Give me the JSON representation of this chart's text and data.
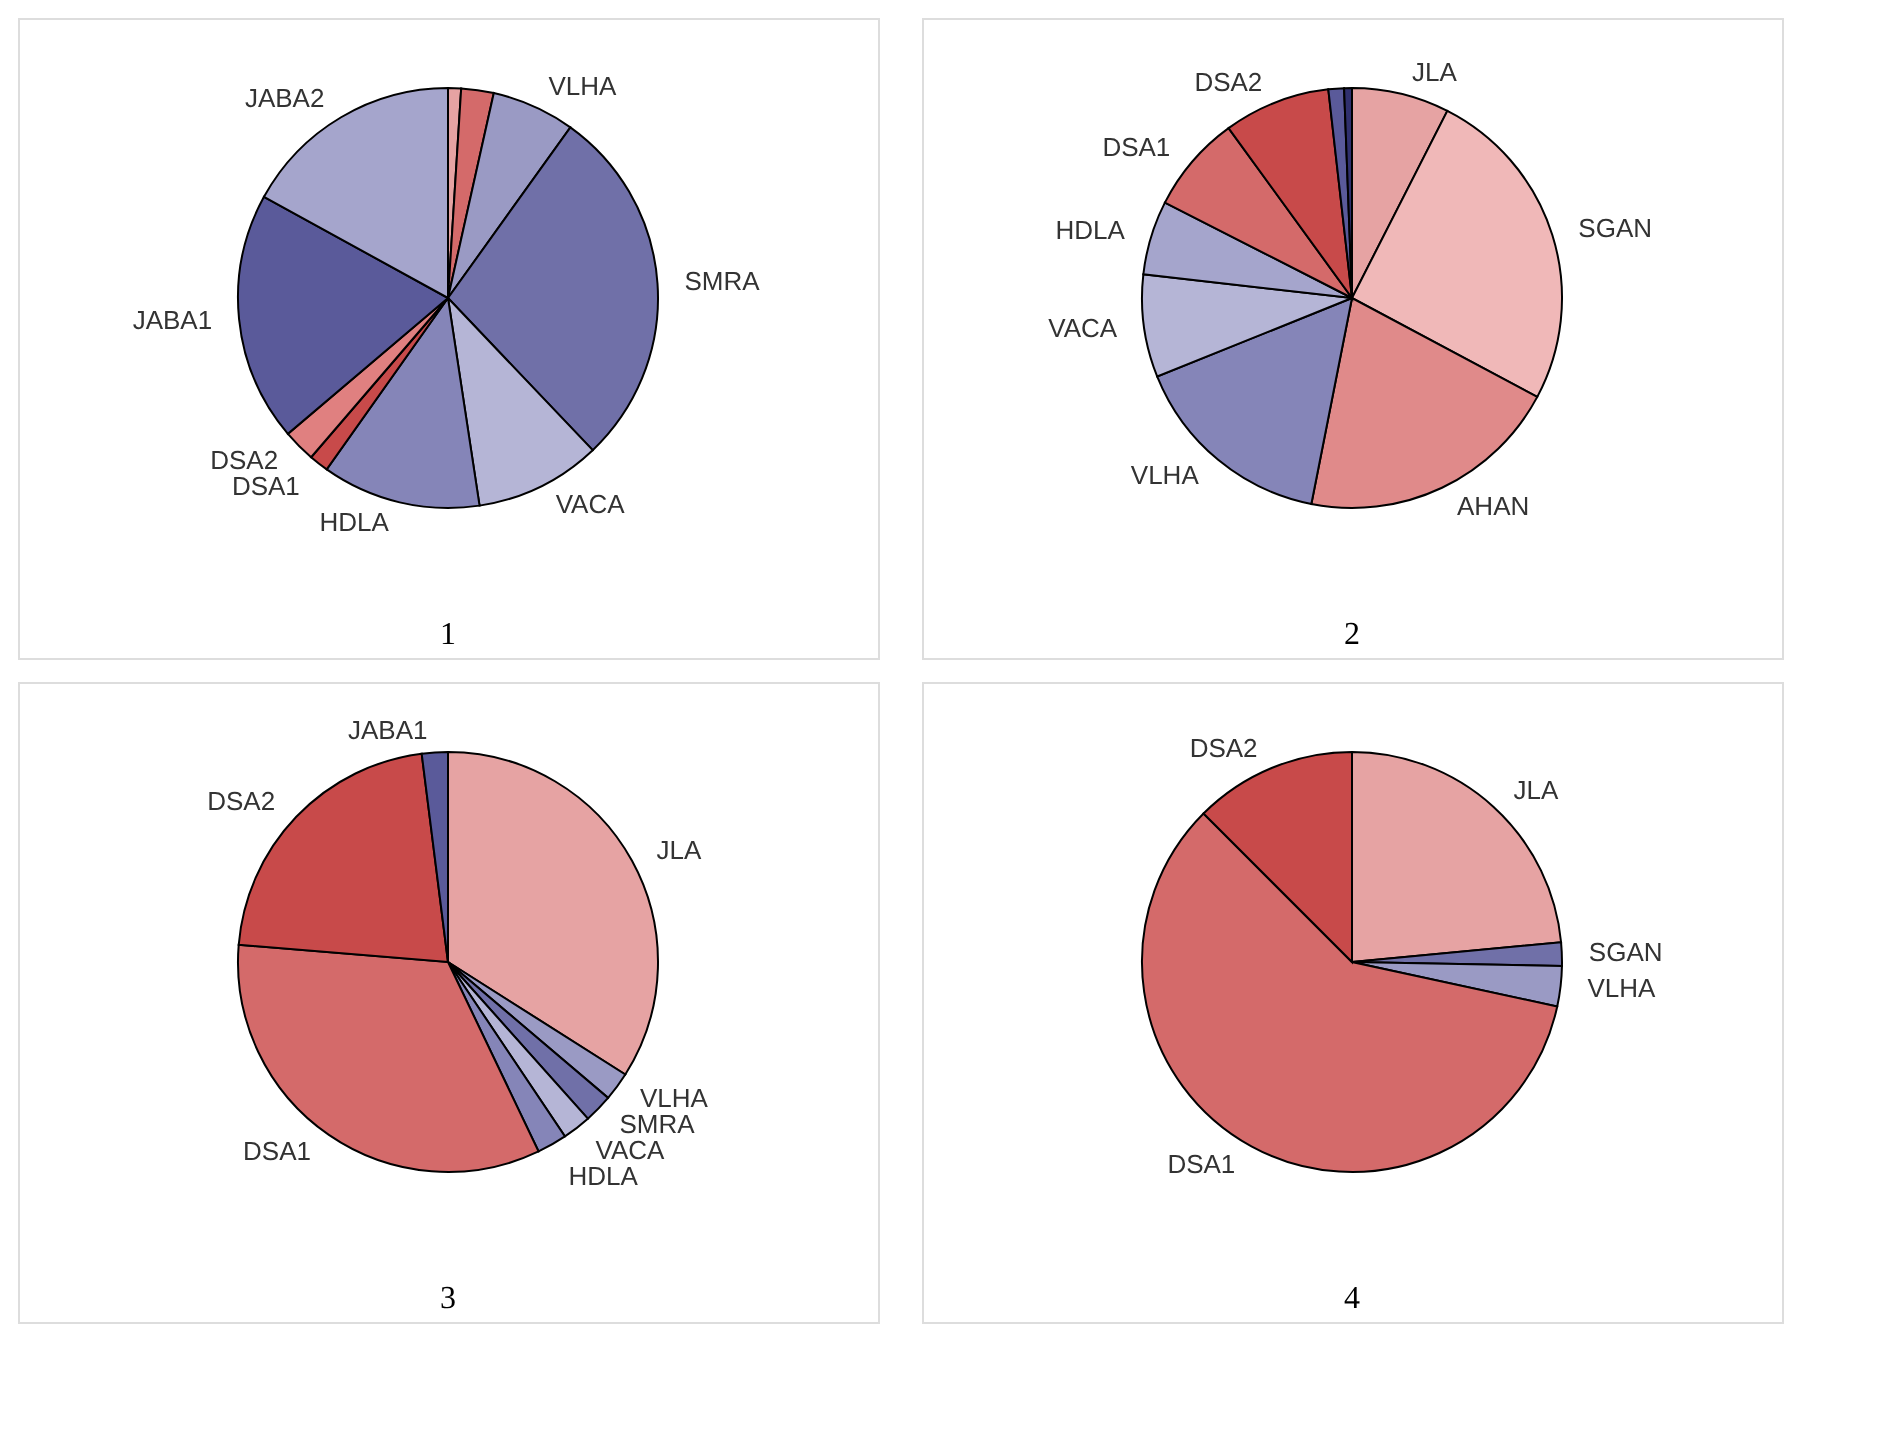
{
  "chart_data": [
    {
      "type": "pie",
      "title": "1",
      "categories": [
        null,
        null,
        "VLHA",
        "SMRA",
        "VACA",
        "HDLA",
        "DSA1",
        "DSA2",
        "JABA1",
        "JABA2"
      ],
      "values": [
        1,
        2.5,
        6.4,
        28,
        9.7,
        12.2,
        1.5,
        2.5,
        19.2,
        17
      ],
      "colors": [
        "#e6a3a3",
        "#d46a6a",
        "#9a9ac4",
        "#7070a8",
        "#b5b5d6",
        "#8585b8",
        "#c84a4a",
        "#e08080",
        "#5a5a9a",
        "#a5a5cc"
      ]
    },
    {
      "type": "pie",
      "title": "2",
      "categories": [
        "JLA",
        "SGAN",
        "AHAN",
        "VLHA",
        "VACA",
        "HDLA",
        "DSA1",
        "DSA2",
        null,
        null
      ],
      "values": [
        7.5,
        25.3,
        20.3,
        15.8,
        7.9,
        5.7,
        7.5,
        8.2,
        1.2,
        0.6
      ],
      "colors": [
        "#e6a3a3",
        "#f0b8b8",
        "#e08a8a",
        "#8585b8",
        "#b5b5d6",
        "#a5a5cc",
        "#d46a6a",
        "#c84a4a",
        "#5a5a9a",
        "#30306e"
      ]
    },
    {
      "type": "pie",
      "title": "3",
      "categories": [
        "JLA",
        "VLHA",
        "SMRA",
        "VACA",
        "HDLA",
        "DSA1",
        "DSA2",
        "JABA1"
      ],
      "values": [
        34,
        2.2,
        2.2,
        2.2,
        2.3,
        33.4,
        21.7,
        2.0
      ],
      "colors": [
        "#e6a3a3",
        "#9a9ac4",
        "#7070a8",
        "#b5b5d6",
        "#8585b8",
        "#d46a6a",
        "#c84a4a",
        "#5a5a9a"
      ]
    },
    {
      "type": "pie",
      "title": "4",
      "categories": [
        "JLA",
        "SGAN",
        "VLHA",
        "DSA1",
        "DSA2"
      ],
      "values": [
        23.5,
        1.8,
        3.1,
        59.1,
        12.5
      ],
      "colors": [
        "#e6a3a3",
        "#7070a8",
        "#9a9ac4",
        "#d46a6a",
        "#c84a4a"
      ]
    }
  ]
}
